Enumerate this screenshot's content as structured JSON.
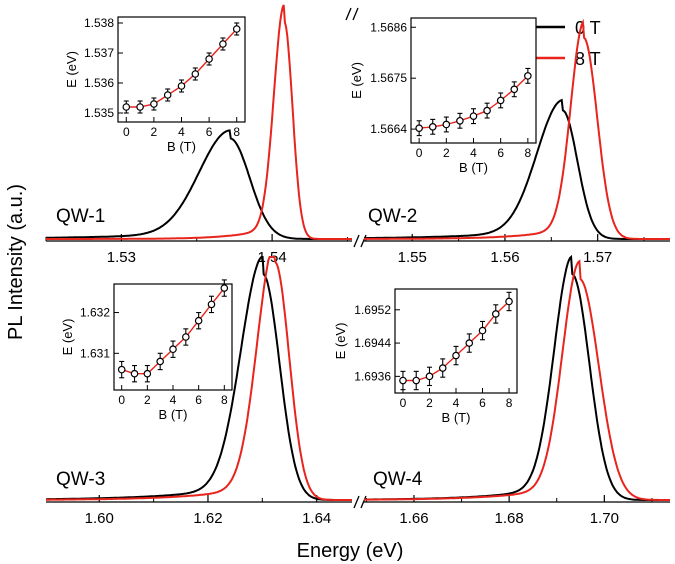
{
  "figure": {
    "ylabel": "PL Intensity (a.u.)",
    "xlabel": "Energy (eV)",
    "break_mark": "//",
    "legend": [
      {
        "label": "0 T",
        "color": "#000000"
      },
      {
        "label": "8 T",
        "color": "#e8241c"
      }
    ]
  },
  "chart_data": [
    {
      "type": "line",
      "id": "qw1",
      "label": "QW-1",
      "xlim": [
        1.525,
        1.5453
      ],
      "ticks": [
        1.53,
        1.54
      ],
      "tick_labels": [
        "1.53",
        "1.54"
      ],
      "series": [
        {
          "name": "0 T",
          "center": 1.5372,
          "fwhm_low": 0.0048,
          "fwhm_high": 0.0031,
          "peak": 0.43
        },
        {
          "name": "8 T",
          "center": 1.5408,
          "fwhm_low": 0.0016,
          "fwhm_high": 0.0013,
          "peak": 0.93
        }
      ],
      "inset": {
        "type": "scatter",
        "xlabel": "B (T)",
        "ylabel": "E (eV)",
        "xlim": [
          -0.6,
          8.6
        ],
        "ylim": [
          1.5347,
          1.5382
        ],
        "xticks": [
          0,
          2,
          4,
          6,
          8
        ],
        "xtick_labels": [
          "0",
          "2",
          "4",
          "6",
          "8"
        ],
        "yticks": [
          1.535,
          1.536,
          1.537,
          1.538
        ],
        "ytick_labels": [
          "1.535",
          "1.536",
          "1.537",
          "1.538"
        ],
        "x": [
          0,
          1,
          2,
          3,
          4,
          5,
          6,
          7,
          8
        ],
        "y": [
          1.5352,
          1.5352,
          1.5353,
          1.5356,
          1.5359,
          1.5363,
          1.5368,
          1.5373,
          1.5378
        ],
        "err": 0.0002
      }
    },
    {
      "type": "line",
      "id": "qw2",
      "label": "QW-2",
      "xlim": [
        1.5448,
        1.5778
      ],
      "ticks": [
        1.55,
        1.56,
        1.57
      ],
      "tick_labels": [
        "1.55",
        "1.56",
        "1.57"
      ],
      "series": [
        {
          "name": "0 T",
          "center": 1.5662,
          "fwhm_low": 0.0065,
          "fwhm_high": 0.0038,
          "peak": 0.55
        },
        {
          "name": "8 T",
          "center": 1.5685,
          "fwhm_low": 0.0033,
          "fwhm_high": 0.0034,
          "peak": 0.86
        }
      ],
      "inset": {
        "type": "scatter",
        "xlabel": "B (T)",
        "ylabel": "E (eV)",
        "xlim": [
          -0.6,
          8.6
        ],
        "ylim": [
          1.5661,
          1.5688
        ],
        "xticks": [
          0,
          2,
          4,
          6,
          8
        ],
        "xtick_labels": [
          "0",
          "2",
          "4",
          "6",
          "8"
        ],
        "yticks": [
          1.5664,
          1.5675,
          1.5686
        ],
        "ytick_labels": [
          "1.5664",
          "1.5675",
          "1.5686"
        ],
        "x": [
          0,
          1,
          2,
          3,
          4,
          5,
          6,
          7,
          8
        ],
        "y": [
          1.56642,
          1.56645,
          1.5665,
          1.56658,
          1.56668,
          1.5668,
          1.56702,
          1.56726,
          1.56755
        ],
        "err": 0.00016
      }
    },
    {
      "type": "line",
      "id": "qw3",
      "label": "QW-3",
      "xlim": [
        1.5902,
        1.6465
      ],
      "ticks": [
        1.6,
        1.62,
        1.64
      ],
      "tick_labels": [
        "1.60",
        "1.62",
        "1.64"
      ],
      "series": [
        {
          "name": "0 T",
          "center": 1.6301,
          "fwhm_low": 0.0095,
          "fwhm_high": 0.0072,
          "peak": 0.93
        },
        {
          "name": "8 T",
          "center": 1.6323,
          "fwhm_low": 0.0076,
          "fwhm_high": 0.0062,
          "peak": 0.98
        }
      ],
      "inset": {
        "type": "scatter",
        "xlabel": "B (T)",
        "ylabel": "E (eV)",
        "xlim": [
          -0.6,
          8.6
        ],
        "ylim": [
          1.6301,
          1.6327
        ],
        "xticks": [
          0,
          2,
          4,
          6,
          8
        ],
        "xtick_labels": [
          "0",
          "2",
          "4",
          "6",
          "8"
        ],
        "yticks": [
          1.631,
          1.632
        ],
        "ytick_labels": [
          "1.631",
          "1.632"
        ],
        "x": [
          0,
          1,
          2,
          3,
          4,
          5,
          6,
          7,
          8
        ],
        "y": [
          1.6306,
          1.6305,
          1.6305,
          1.6308,
          1.6311,
          1.6314,
          1.6318,
          1.6322,
          1.6326
        ],
        "err": 0.0002
      }
    },
    {
      "type": "line",
      "id": "qw4",
      "label": "QW-4",
      "xlim": [
        1.6495,
        1.7138
      ],
      "ticks": [
        1.66,
        1.68,
        1.7
      ],
      "tick_labels": [
        "1.66",
        "1.68",
        "1.70"
      ],
      "series": [
        {
          "name": "0 T",
          "center": 1.6932,
          "fwhm_low": 0.0088,
          "fwhm_high": 0.0086,
          "peak": 0.93
        },
        {
          "name": "8 T",
          "center": 1.6948,
          "fwhm_low": 0.0085,
          "fwhm_high": 0.0095,
          "peak": 0.91
        }
      ],
      "inset": {
        "type": "scatter",
        "xlabel": "B (T)",
        "ylabel": "E (eV)",
        "xlim": [
          -0.6,
          8.6
        ],
        "ylim": [
          1.6932,
          1.6957
        ],
        "xticks": [
          0,
          2,
          4,
          6,
          8
        ],
        "xtick_labels": [
          "0",
          "2",
          "4",
          "6",
          "8"
        ],
        "yticks": [
          1.6936,
          1.6944,
          1.6952
        ],
        "ytick_labels": [
          "1.6936",
          "1.6944",
          "1.6952"
        ],
        "x": [
          0,
          1,
          2,
          3,
          4,
          5,
          6,
          7,
          8
        ],
        "y": [
          1.6935,
          1.6935,
          1.6936,
          1.6938,
          1.6941,
          1.6944,
          1.6947,
          1.6951,
          1.6954
        ],
        "err": 0.00022
      }
    }
  ]
}
